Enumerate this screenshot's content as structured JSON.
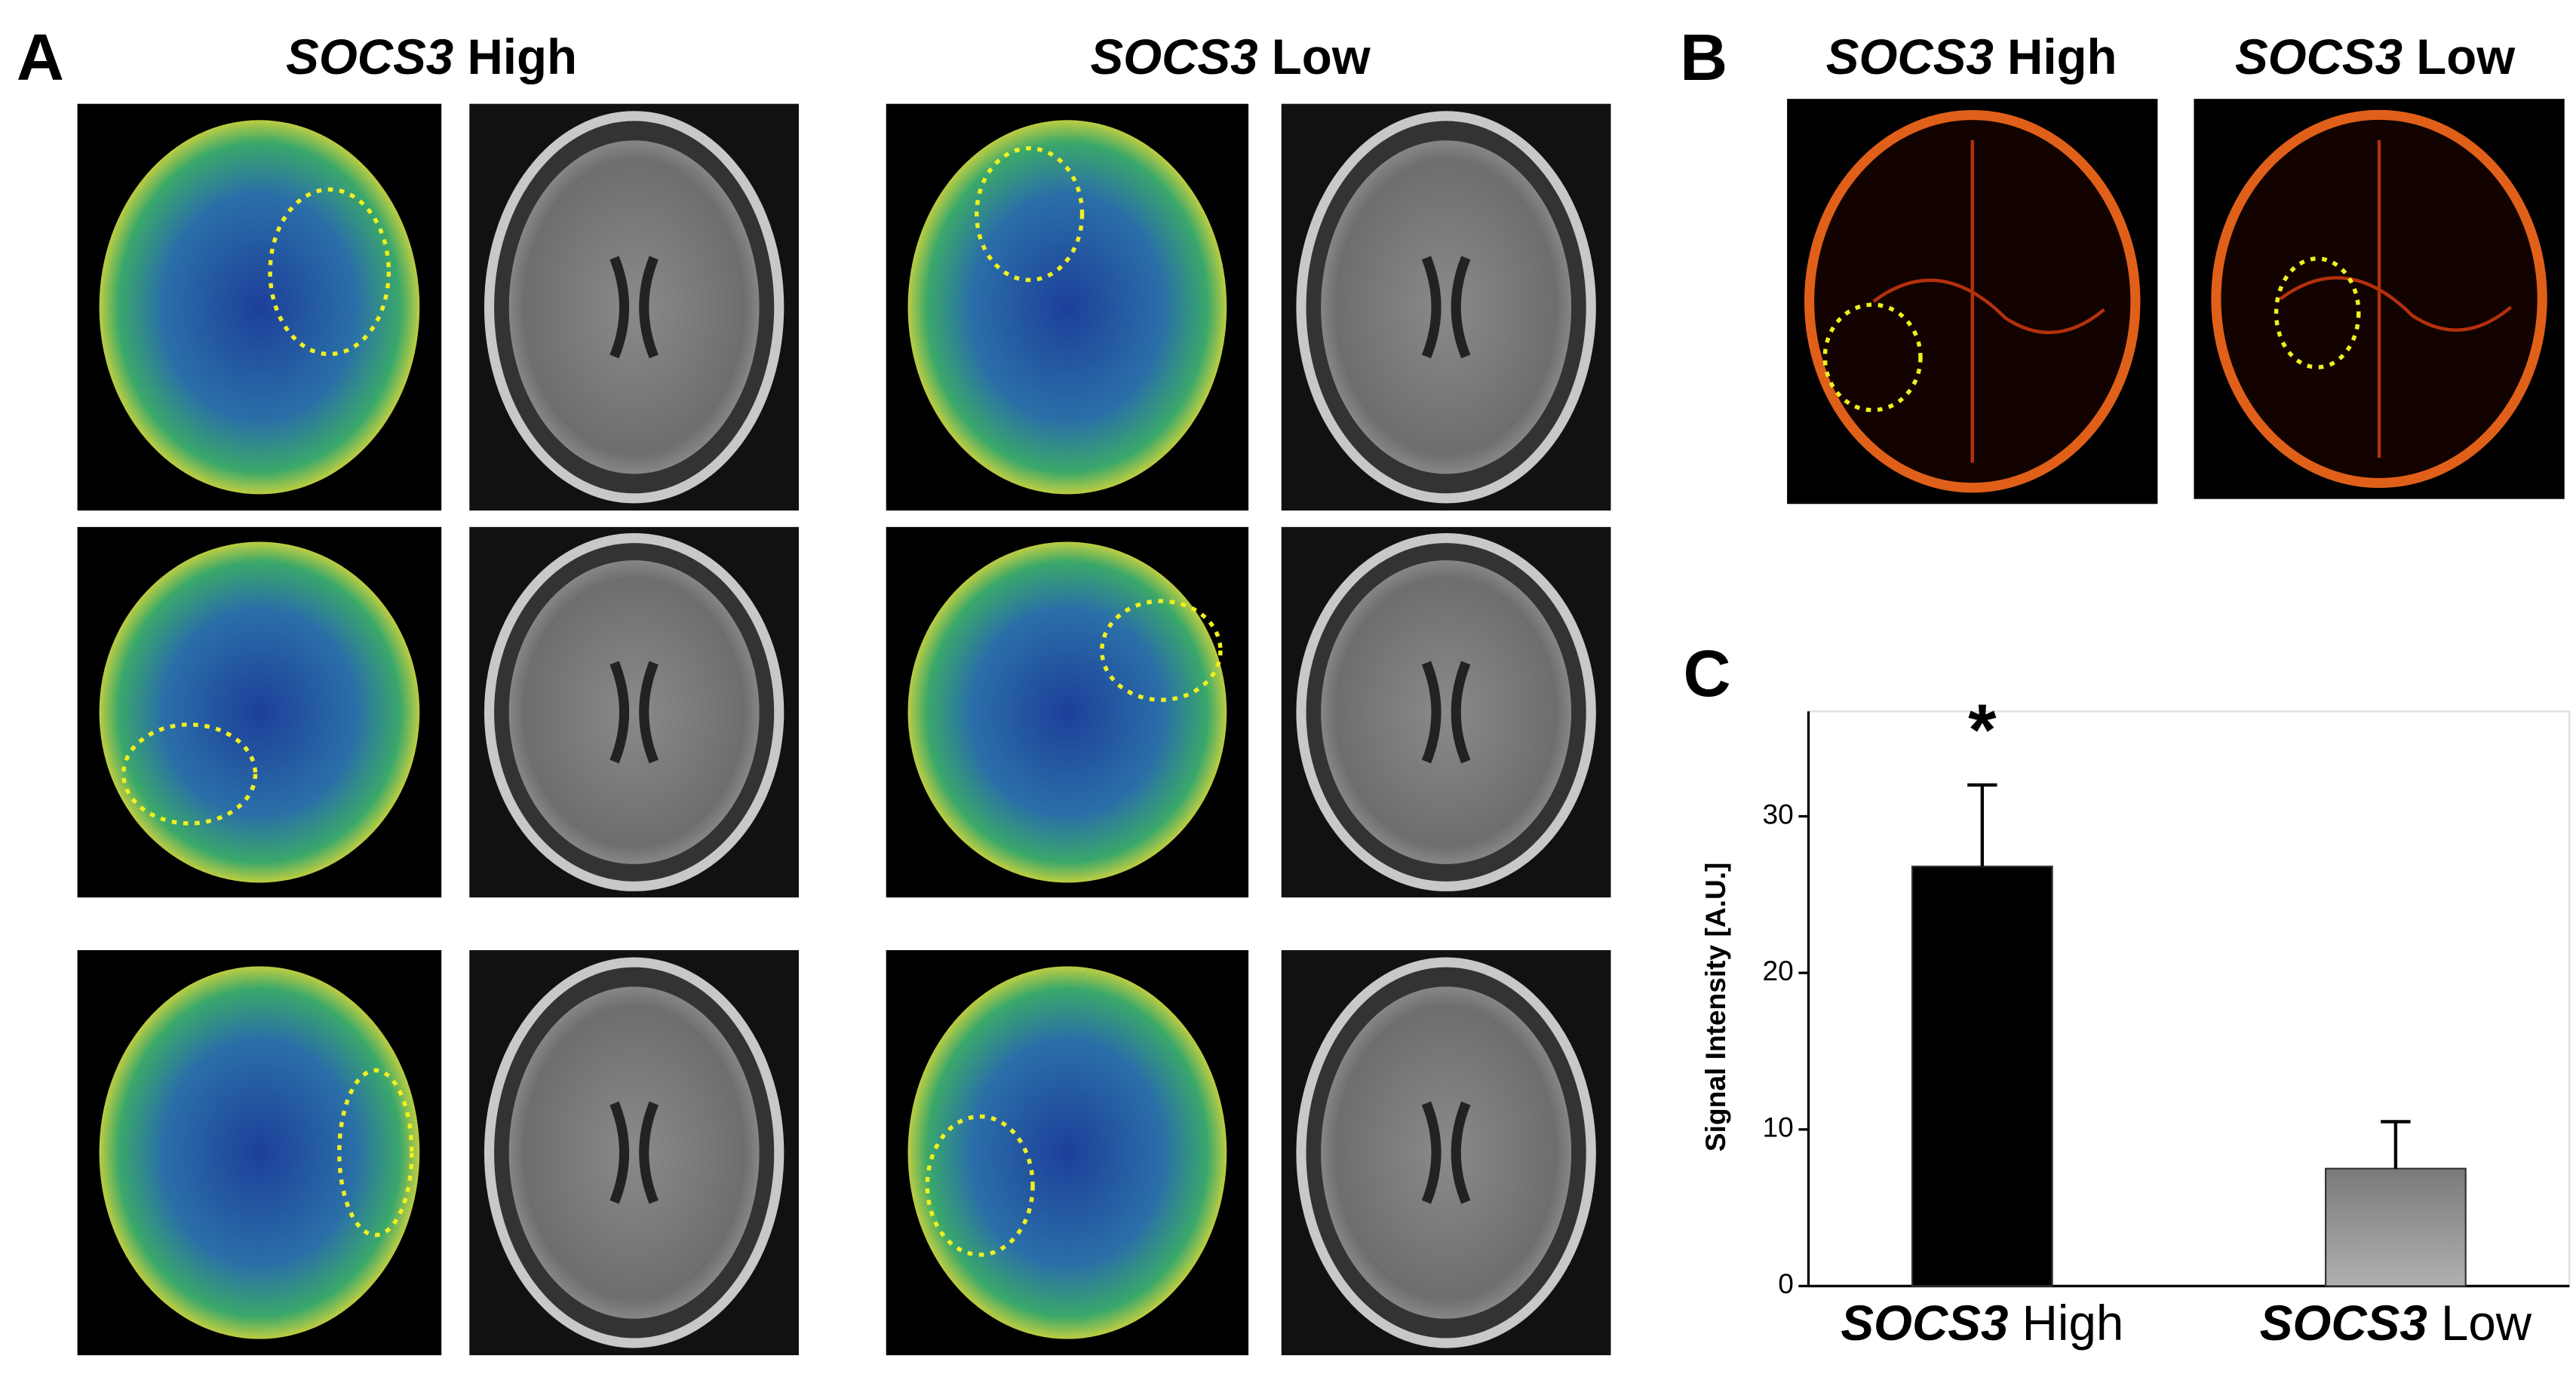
{
  "panel_a": {
    "label": "A",
    "titles": [
      {
        "gene": "SOCS3",
        "condition": "High"
      },
      {
        "gene": "SOCS3",
        "condition": "Low"
      }
    ]
  },
  "panel_b": {
    "label": "B",
    "titles": [
      {
        "gene": "SOCS3",
        "condition": "High"
      },
      {
        "gene": "SOCS3",
        "condition": "Low"
      }
    ]
  },
  "panel_c": {
    "label": "C"
  },
  "chart_data": {
    "type": "bar",
    "ylabel": "Signal Intensity [A.U.]",
    "categories": [
      "SOCS3 High",
      "SOCS3 Low"
    ],
    "values": [
      26.8,
      7.5
    ],
    "errors": [
      5.2,
      3.0
    ],
    "colors": [
      "#000000",
      "#8c8c8c"
    ],
    "annotation": "*",
    "ylim": [
      0,
      36.7
    ],
    "yticks": [
      0,
      10,
      20,
      30
    ]
  }
}
